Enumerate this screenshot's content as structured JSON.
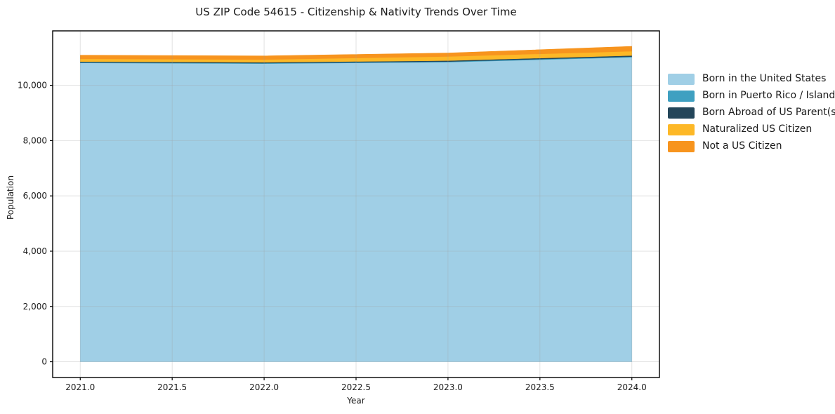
{
  "chart_data": {
    "type": "area",
    "stacked": true,
    "title": "US ZIP Code 54615 - Citizenship & Nativity Trends Over Time",
    "xlabel": "Year",
    "ylabel": "Population",
    "x": [
      2021,
      2022,
      2023,
      2024
    ],
    "series": [
      {
        "name": "Born in the United States",
        "color": "#A0CFE6",
        "values": [
          10810,
          10785,
          10840,
          11015
        ]
      },
      {
        "name": "Born in Puerto Rico / Islands",
        "color": "#3FA0C1",
        "values": [
          20,
          20,
          20,
          25
        ]
      },
      {
        "name": "Born Abroad of US Parent(s)",
        "color": "#24465A",
        "values": [
          30,
          30,
          35,
          40
        ]
      },
      {
        "name": "Naturalized US Citizen",
        "color": "#FDB827",
        "values": [
          100,
          100,
          150,
          155
        ]
      },
      {
        "name": "Not a US Citizen",
        "color": "#F7941E",
        "values": [
          130,
          130,
          125,
          175
        ]
      }
    ],
    "xlim": [
      2020.85,
      2024.15
    ],
    "ylim": [
      -570,
      11970
    ],
    "xticks": [
      2021.0,
      2021.5,
      2022.0,
      2022.5,
      2023.0,
      2023.5,
      2024.0
    ],
    "xtick_labels": [
      "2021.0",
      "2021.5",
      "2022.0",
      "2022.5",
      "2023.0",
      "2023.5",
      "2024.0"
    ],
    "yticks": [
      0,
      2000,
      4000,
      6000,
      8000,
      10000
    ],
    "ytick_labels": [
      "0",
      "2,000",
      "4,000",
      "6,000",
      "8,000",
      "10,000"
    ],
    "grid": true,
    "legend_position": "right outside",
    "frame_color": "#000000",
    "grid_color": "rgba(160,160,160,0.30)"
  }
}
